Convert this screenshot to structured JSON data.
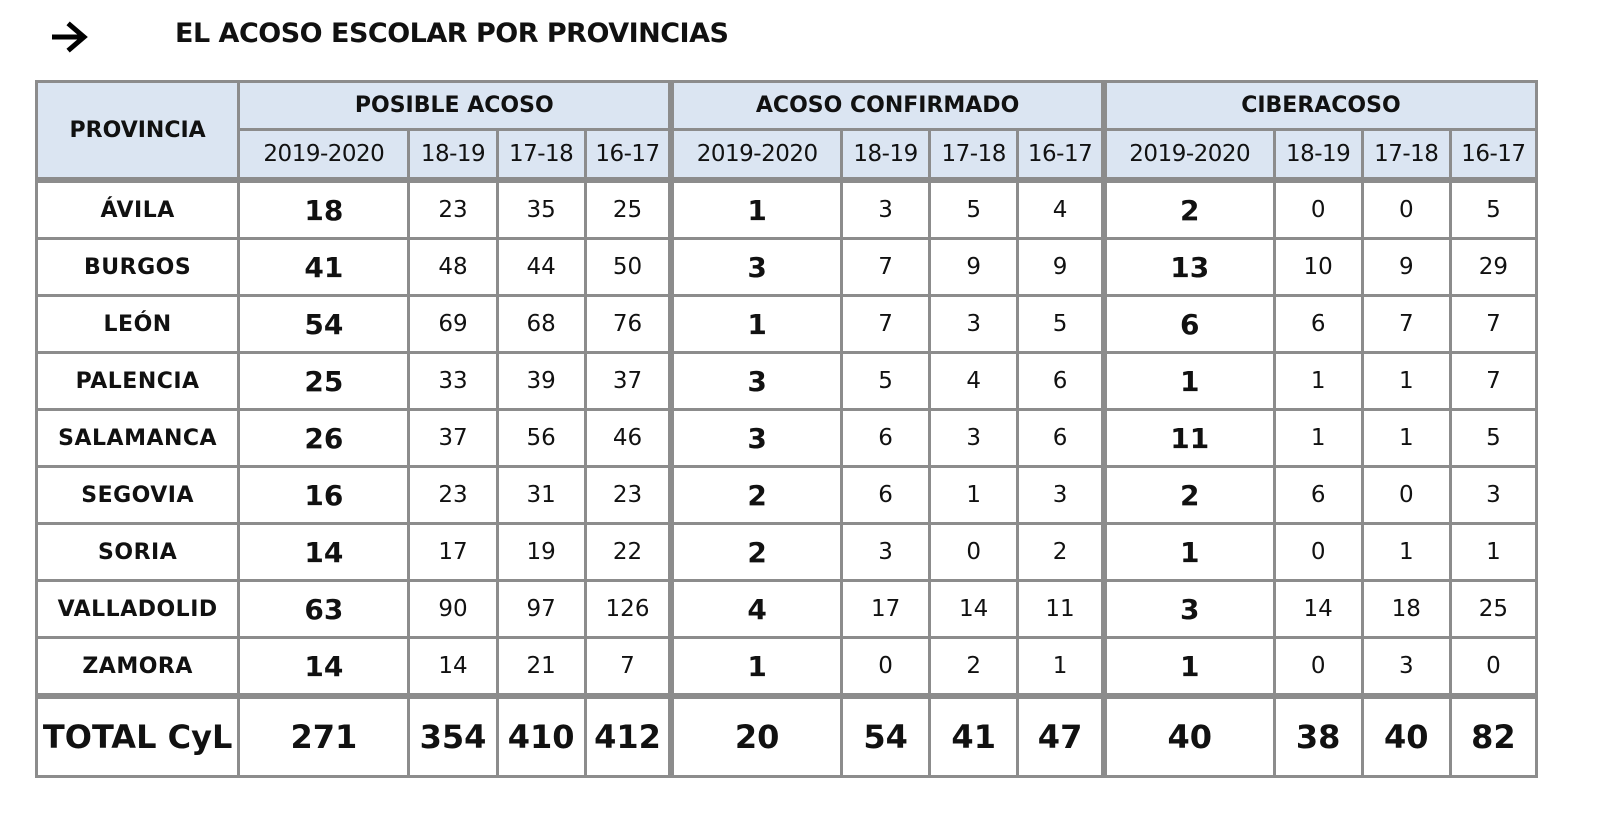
{
  "title": "EL ACOSO ESCOLAR POR PROVINCIAS",
  "table": {
    "corner": "PROVINCIA",
    "groups": [
      {
        "name": "POSIBLE ACOSO",
        "years": [
          "2019-2020",
          "18-19",
          "17-18",
          "16-17"
        ]
      },
      {
        "name": "ACOSO CONFIRMADO",
        "years": [
          "2019-2020",
          "18-19",
          "17-18",
          "16-17"
        ]
      },
      {
        "name": "CIBERACOSO",
        "years": [
          "2019-2020",
          "18-19",
          "17-18",
          "16-17"
        ]
      }
    ],
    "rows": [
      {
        "province": "ÁVILA",
        "values": [
          18,
          23,
          35,
          25,
          1,
          3,
          5,
          4,
          2,
          0,
          0,
          5
        ]
      },
      {
        "province": "BURGOS",
        "values": [
          41,
          48,
          44,
          50,
          3,
          7,
          9,
          9,
          13,
          10,
          9,
          29
        ]
      },
      {
        "province": "LEÓN",
        "values": [
          54,
          69,
          68,
          76,
          1,
          7,
          3,
          5,
          6,
          6,
          7,
          7
        ]
      },
      {
        "province": "PALENCIA",
        "values": [
          25,
          33,
          39,
          37,
          3,
          5,
          4,
          6,
          1,
          1,
          1,
          7
        ]
      },
      {
        "province": "SALAMANCA",
        "values": [
          26,
          37,
          56,
          46,
          3,
          6,
          3,
          6,
          11,
          1,
          1,
          5
        ]
      },
      {
        "province": "SEGOVIA",
        "values": [
          16,
          23,
          31,
          23,
          2,
          6,
          1,
          3,
          2,
          6,
          0,
          3
        ]
      },
      {
        "province": "SORIA",
        "values": [
          14,
          17,
          19,
          22,
          2,
          3,
          0,
          2,
          1,
          0,
          1,
          1
        ]
      },
      {
        "province": "VALLADOLID",
        "values": [
          63,
          90,
          97,
          126,
          4,
          17,
          14,
          11,
          3,
          14,
          18,
          25
        ]
      },
      {
        "province": "ZAMORA",
        "values": [
          14,
          14,
          21,
          7,
          1,
          0,
          2,
          1,
          1,
          0,
          3,
          0
        ]
      }
    ],
    "total": {
      "label": "TOTAL CyL",
      "values": [
        271,
        354,
        410,
        412,
        20,
        54,
        41,
        47,
        40,
        38,
        40,
        82
      ]
    }
  }
}
